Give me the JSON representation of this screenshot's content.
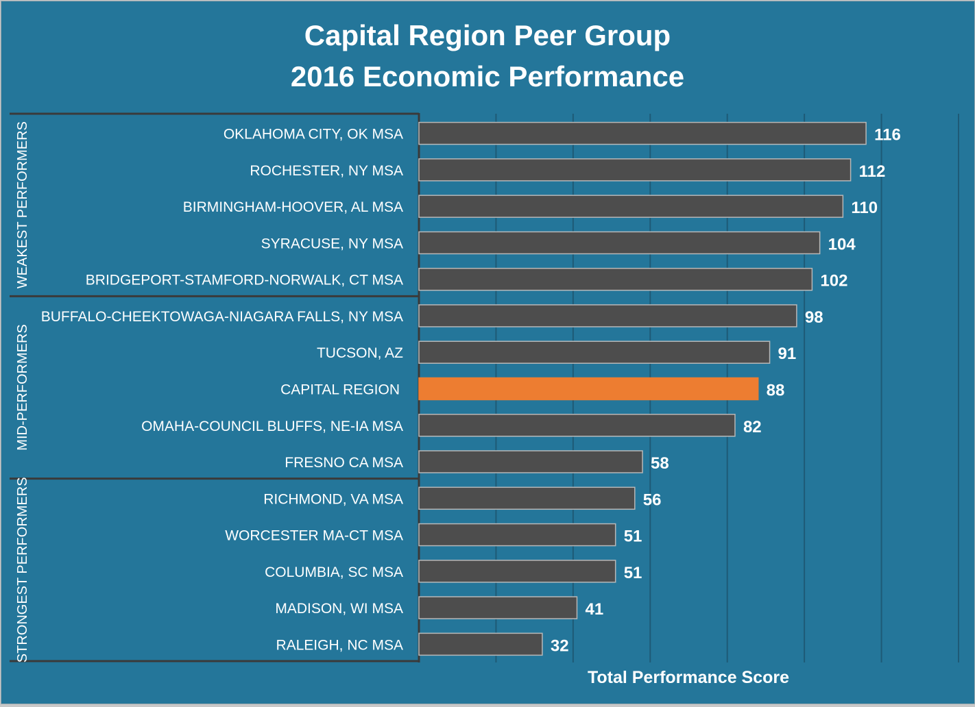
{
  "chart_data": {
    "type": "bar",
    "orientation": "horizontal",
    "title_line1": "Capital Region Peer Group",
    "title_line2": "2016 Economic Performance",
    "xlabel": "Total Performance Score",
    "ylabel": "",
    "xlim": [
      0,
      140
    ],
    "grid": "vertical every 20",
    "show_tick_labels": false,
    "colors": {
      "background": "#24769a",
      "bar": "#4d4d4d",
      "highlight": "#ed7d31",
      "gridline": "#1e5a76",
      "group_border": "#3a3a3a"
    },
    "categories": [
      "OKLAHOMA CITY, OK MSA",
      "ROCHESTER, NY MSA",
      "BIRMINGHAM-HOOVER, AL MSA",
      "SYRACUSE, NY MSA",
      "BRIDGEPORT-STAMFORD-NORWALK, CT MSA",
      "BUFFALO-CHEEKTOWAGA-NIAGARA FALLS, NY MSA",
      "TUCSON, AZ",
      "CAPITAL REGION",
      "OMAHA-COUNCIL BLUFFS, NE-IA MSA",
      "FRESNO CA MSA",
      "RICHMOND, VA MSA",
      "WORCESTER MA-CT MSA",
      "COLUMBIA, SC MSA",
      "MADISON,  WI MSA",
      "RALEIGH, NC MSA"
    ],
    "values": [
      116,
      112,
      110,
      104,
      102,
      98,
      91,
      88,
      82,
      58,
      56,
      51,
      51,
      41,
      32
    ],
    "highlight_category": "CAPITAL REGION",
    "groups": [
      {
        "label": "WEAKEST PERFORMERS",
        "count": 5
      },
      {
        "label": "MID-PERFORMERS",
        "count": 5
      },
      {
        "label": "STRONGEST PERFORMERS",
        "count": 5
      }
    ]
  }
}
